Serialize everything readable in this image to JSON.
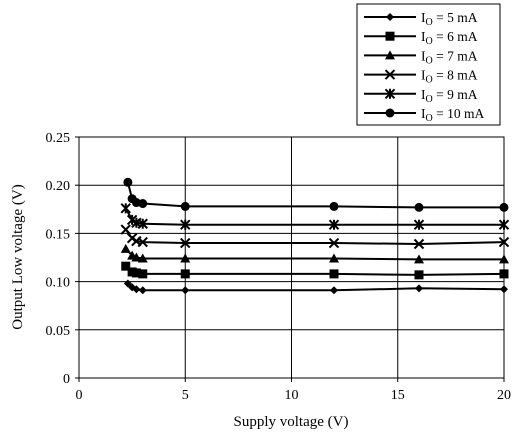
{
  "chart_data": {
    "type": "line",
    "title": "",
    "xlabel": "Supply voltage  (V)",
    "ylabel": "Output Low voltage  (V)",
    "xlim": [
      0,
      20
    ],
    "ylim": [
      0,
      0.25
    ],
    "x_ticks": [
      0,
      5,
      10,
      15,
      20
    ],
    "y_ticks": [
      0,
      0.05,
      0.1,
      0.15,
      0.2,
      0.25
    ],
    "x_tick_labels": [
      "0",
      "5",
      "10",
      "15",
      "20"
    ],
    "y_tick_labels": [
      "0",
      "0.05",
      "0.10",
      "0.15",
      "0.20",
      "0.25"
    ],
    "grid": true,
    "legend_position": "top-right",
    "series": [
      {
        "name_main": "I",
        "name_sub": "O",
        "name_rest": " = 5 mA",
        "marker": "diamond",
        "x": [
          2.3,
          2.5,
          2.7,
          3.0,
          5.0,
          12.0,
          16.0,
          20.0
        ],
        "y": [
          0.098,
          0.094,
          0.092,
          0.091,
          0.091,
          0.091,
          0.093,
          0.092
        ]
      },
      {
        "name_main": "I",
        "name_sub": "O",
        "name_rest": " = 6 mA",
        "marker": "square",
        "x": [
          2.2,
          2.5,
          2.7,
          3.0,
          5.0,
          12.0,
          16.0,
          20.0
        ],
        "y": [
          0.116,
          0.11,
          0.109,
          0.108,
          0.108,
          0.108,
          0.107,
          0.108
        ]
      },
      {
        "name_main": "I",
        "name_sub": "O",
        "name_rest": " = 7 mA",
        "marker": "triangle",
        "x": [
          2.2,
          2.5,
          2.7,
          3.0,
          5.0,
          12.0,
          16.0,
          20.0
        ],
        "y": [
          0.134,
          0.127,
          0.125,
          0.124,
          0.124,
          0.124,
          0.123,
          0.123
        ]
      },
      {
        "name_main": "I",
        "name_sub": "O",
        "name_rest": " = 8 mA",
        "marker": "x",
        "x": [
          2.2,
          2.5,
          2.7,
          3.0,
          5.0,
          12.0,
          16.0,
          20.0
        ],
        "y": [
          0.154,
          0.145,
          0.142,
          0.141,
          0.14,
          0.14,
          0.139,
          0.141
        ]
      },
      {
        "name_main": "I",
        "name_sub": "O",
        "name_rest": " = 9 mA",
        "marker": "asterisk",
        "x": [
          2.2,
          2.5,
          2.7,
          3.0,
          5.0,
          12.0,
          16.0,
          20.0
        ],
        "y": [
          0.176,
          0.164,
          0.161,
          0.16,
          0.159,
          0.159,
          0.159,
          0.159
        ]
      },
      {
        "name_main": "I",
        "name_sub": "O",
        "name_rest": " = 10 mA",
        "marker": "circle",
        "x": [
          2.3,
          2.5,
          2.7,
          3.0,
          5.0,
          12.0,
          16.0,
          20.0
        ],
        "y": [
          0.203,
          0.186,
          0.182,
          0.181,
          0.178,
          0.178,
          0.177,
          0.177
        ]
      }
    ]
  }
}
